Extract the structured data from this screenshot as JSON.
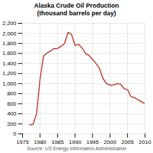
{
  "chart_data": {
    "type": "line",
    "title": "Alaska Crude Oil Production\n(thousand barrels per day)",
    "source": "Source: US Energy Information Administration",
    "x": [
      1977,
      1978,
      1979,
      1980,
      1981,
      1982,
      1983,
      1984,
      1985,
      1986,
      1987,
      1988,
      1989,
      1990,
      1991,
      1992,
      1993,
      1994,
      1995,
      1996,
      1997,
      1998,
      1999,
      2000,
      2001,
      2002,
      2003,
      2004,
      2005,
      2006,
      2007,
      2008,
      2009,
      2010
    ],
    "values": [
      180,
      190,
      400,
      1100,
      1550,
      1610,
      1650,
      1700,
      1700,
      1740,
      1800,
      2020,
      1980,
      1760,
      1780,
      1710,
      1600,
      1560,
      1480,
      1400,
      1300,
      1100,
      1000,
      970,
      975,
      1000,
      990,
      900,
      880,
      740,
      720,
      680,
      640,
      600
    ],
    "color": "#c0392b",
    "xlim": [
      1975,
      2010
    ],
    "xticks": [
      1975,
      1980,
      1985,
      1990,
      1995,
      2000,
      2005,
      2010
    ],
    "ylim": [
      0,
      2200
    ],
    "yticks": [
      0,
      200,
      400,
      600,
      800,
      {
        "value": 1000,
        "label": "1,000"
      },
      {
        "value": 1200,
        "label": "1,200"
      },
      {
        "value": 1400,
        "label": "1,400"
      },
      {
        "value": 1600,
        "label": "1,600"
      },
      {
        "value": 1800,
        "label": "1,800"
      },
      {
        "value": 2000,
        "label": "2,000"
      },
      {
        "value": 2200,
        "label": "2,200"
      }
    ],
    "grid": true
  }
}
